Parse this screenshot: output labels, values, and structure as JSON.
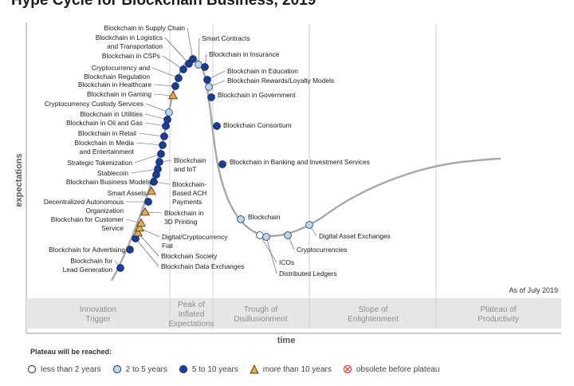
{
  "title": "Hype Cycle for Blockchain Business, 2019",
  "chart_data": {
    "type": "scatter",
    "title": "Hype Cycle for Blockchain Business, 2019",
    "xlabel": "time",
    "ylabel": "expectations",
    "note": "As of July 2019",
    "phases": [
      "Innovation Trigger",
      "Peak of Inflated Expectations",
      "Trough of Disillusionment",
      "Slope of Enlightenment",
      "Plateau of Productivity"
    ],
    "legend_title": "Plateau will be reached:",
    "legend": [
      {
        "key": "lt2",
        "label": "less than 2 years",
        "shape": "circle",
        "color": "#ffffff"
      },
      {
        "key": "2to5",
        "label": "2 to 5 years",
        "shape": "circle",
        "color": "#bcd7ec"
      },
      {
        "key": "5to10",
        "label": "5 to 10 years",
        "shape": "circle",
        "color": "#1a3e93"
      },
      {
        "key": "gt10",
        "label": "more than 10 years",
        "shape": "triangle",
        "color": "#f2a93b"
      },
      {
        "key": "obs",
        "label": "obsolete before plateau",
        "shape": "x",
        "color": "#d64a4a"
      }
    ],
    "points": [
      {
        "label": "Blockchain for Lead Generation",
        "cat": "5to10"
      },
      {
        "label": "Blockchain for Advertising",
        "cat": "5to10"
      },
      {
        "label": "Blockchain Data Exchanges",
        "cat": "5to10"
      },
      {
        "label": "Blockchain Society",
        "cat": "gt10"
      },
      {
        "label": "Digital/Cryptocurrency Fiat",
        "cat": "gt10"
      },
      {
        "label": "Blockchain for Customer Service",
        "cat": "gt10"
      },
      {
        "label": "Blockchain in 3D Printing",
        "cat": "gt10"
      },
      {
        "label": "Decentralized Autonomous Organization",
        "cat": "5to10"
      },
      {
        "label": "Smart Assets",
        "cat": "gt10"
      },
      {
        "label": "Blockchain-Based ACH Payments",
        "cat": "5to10"
      },
      {
        "label": "Blockchain Business Models",
        "cat": "5to10"
      },
      {
        "label": "Stablecoin",
        "cat": "5to10"
      },
      {
        "label": "Blockchain and IoT",
        "cat": "5to10"
      },
      {
        "label": "Strategic Tokenization",
        "cat": "5to10"
      },
      {
        "label": "Blockchain in Media and Entertainment",
        "cat": "5to10"
      },
      {
        "label": "Blockchain in Retail",
        "cat": "5to10"
      },
      {
        "label": "Blockchain in Oil and Gas",
        "cat": "5to10"
      },
      {
        "label": "Blockchain in Utilities",
        "cat": "5to10"
      },
      {
        "label": "Cryptocurrency Custody Services",
        "cat": "2to5"
      },
      {
        "label": "Blockchain in Gaming",
        "cat": "gt10"
      },
      {
        "label": "Blockchain in Healthcare",
        "cat": "5to10"
      },
      {
        "label": "Cryptocurrency and Blockchain Regulation",
        "cat": "5to10"
      },
      {
        "label": "Blockchain in CSPs",
        "cat": "5to10"
      },
      {
        "label": "Blockchain in Logistics and Transportation",
        "cat": "5to10"
      },
      {
        "label": "Blockchain in Supply Chain",
        "cat": "5to10"
      },
      {
        "label": "Smart Contracts",
        "cat": "2to5"
      },
      {
        "label": "Blockchain in Insurance",
        "cat": "5to10"
      },
      {
        "label": "Blockchain in Education",
        "cat": "5to10"
      },
      {
        "label": "Blockchain Rewards/Loyalty Models",
        "cat": "2to5"
      },
      {
        "label": "Blockchain in Government",
        "cat": "5to10"
      },
      {
        "label": "Blockchain Consortium",
        "cat": "5to10"
      },
      {
        "label": "Blockchain in Banking and Investment Services",
        "cat": "5to10"
      },
      {
        "label": "Blockchain",
        "cat": "2to5"
      },
      {
        "label": "ICOs",
        "cat": "lt2"
      },
      {
        "label": "Distributed Ledgers",
        "cat": "2to5"
      },
      {
        "label": "Cryptocurrencies",
        "cat": "2to5"
      },
      {
        "label": "Digital Asset Exchanges",
        "cat": "2to5"
      }
    ]
  }
}
